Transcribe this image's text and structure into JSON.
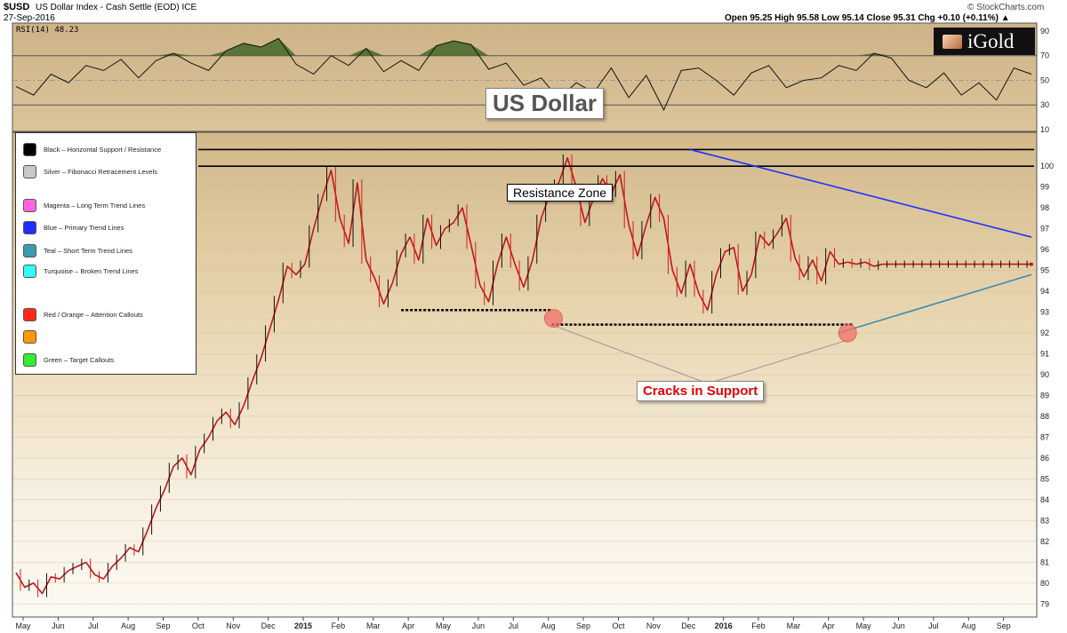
{
  "header": {
    "symbol": "$USD",
    "description": "US Dollar Index - Cash Settle (EOD) ICE",
    "date": "27-Sep-2016",
    "source": "© StockCharts.com",
    "ohlc": "Open 95.25  High 95.58  Low 95.14  Close 95.31  Chg +0.10 (+0.11%) ▲"
  },
  "logo": {
    "text": "iGold"
  },
  "annotations": {
    "title": "US Dollar",
    "resistance": "Resistance Zone",
    "cracks": "Cracks in Support"
  },
  "legend": [
    {
      "label": "Black – Horizontal Support / Resistance",
      "color": "#000000"
    },
    {
      "label": "Silver – Fibonacci Retracement Levels",
      "color": "#c8c8c8"
    },
    {
      "label": "Magenta – Long Term Trend Lines",
      "color": "#ff66dd"
    },
    {
      "label": "Blue – Primary Trend Lines",
      "color": "#1f2fff"
    },
    {
      "label": "Teal – Short Term Trend Lines",
      "color": "#3a9ab0"
    },
    {
      "label": "Turquoise – Broken Trend Lines",
      "color": "#33ffff"
    },
    {
      "label": "Red / Orange – Attention Callouts",
      "color": "#ff2b1a"
    },
    {
      "label": "",
      "color": "#ff9a00"
    },
    {
      "label": "Green – Target Callouts",
      "color": "#33ee33"
    }
  ],
  "chart_data": [
    {
      "type": "line",
      "name": "RSI(14) 48.23",
      "y_ticks": [
        90,
        70,
        50,
        30,
        10
      ],
      "ylim": [
        10,
        95
      ],
      "reference_lines": [
        70,
        50,
        30
      ],
      "x_months": [
        "May",
        "Jun",
        "Jul",
        "Aug",
        "Sep",
        "Oct",
        "Nov",
        "Dec",
        "2015",
        "Feb",
        "Mar",
        "Apr",
        "May",
        "Jun",
        "Jul",
        "Aug",
        "Sep",
        "Oct",
        "Nov",
        "Dec",
        "2016",
        "Feb",
        "Mar",
        "Apr",
        "May",
        "Jun",
        "Jul",
        "Aug",
        "Sep"
      ],
      "x": [
        0,
        10,
        20,
        30,
        40,
        50,
        60,
        70,
        80,
        90,
        100,
        110,
        120,
        130,
        140,
        150,
        160,
        170,
        180,
        190,
        200,
        210,
        220,
        230,
        240,
        250,
        260,
        270,
        280,
        290,
        300,
        310,
        320,
        330,
        340,
        350,
        360,
        370,
        380,
        390,
        400,
        410,
        420,
        430,
        440,
        450,
        460,
        470,
        480,
        490,
        500,
        510,
        520,
        530,
        540,
        550,
        560,
        570,
        580
      ],
      "values": [
        45,
        38,
        55,
        48,
        62,
        58,
        67,
        52,
        66,
        72,
        64,
        58,
        74,
        80,
        77,
        84,
        63,
        55,
        70,
        62,
        76,
        57,
        66,
        58,
        78,
        82,
        79,
        59,
        64,
        46,
        52,
        35,
        48,
        40,
        60,
        36,
        54,
        26,
        58,
        60,
        50,
        38,
        56,
        62,
        44,
        50,
        52,
        62,
        58,
        72,
        68,
        50,
        44,
        56,
        38,
        48,
        34,
        60,
        55
      ],
      "last": 48.23
    },
    {
      "type": "line",
      "name": "$USD",
      "y_ticks": [
        79,
        80,
        81,
        82,
        83,
        84,
        85,
        86,
        87,
        88,
        89,
        90,
        91,
        92,
        93,
        94,
        95,
        96,
        97,
        98,
        99,
        100
      ],
      "ylim": [
        78.5,
        101.5
      ],
      "x_months": [
        "May",
        "Jun",
        "Jul",
        "Aug",
        "Sep",
        "Oct",
        "Nov",
        "Dec",
        "2015",
        "Feb",
        "Mar",
        "Apr",
        "May",
        "Jun",
        "Jul",
        "Aug",
        "Sep",
        "Oct",
        "Nov",
        "Dec",
        "2016",
        "Feb",
        "Mar",
        "Apr",
        "May",
        "Jun",
        "Jul",
        "Aug",
        "Sep"
      ],
      "x": [
        0,
        5,
        10,
        15,
        20,
        25,
        30,
        35,
        40,
        45,
        50,
        55,
        60,
        65,
        70,
        75,
        80,
        85,
        90,
        95,
        100,
        105,
        110,
        115,
        120,
        125,
        130,
        135,
        140,
        145,
        150,
        155,
        160,
        165,
        170,
        175,
        180,
        185,
        190,
        195,
        200,
        205,
        210,
        215,
        220,
        225,
        230,
        235,
        240,
        245,
        250,
        255,
        260,
        265,
        270,
        275,
        280,
        285,
        290,
        295,
        300,
        305,
        310,
        315,
        320,
        325,
        330,
        335,
        340,
        345,
        350,
        355,
        360,
        365,
        370,
        375,
        380,
        385,
        390,
        395,
        400,
        405,
        410,
        415,
        420,
        425,
        430,
        435,
        440,
        445,
        450,
        455,
        460,
        465,
        470,
        475,
        480,
        485,
        490,
        495,
        500,
        505,
        510,
        515,
        520,
        525,
        530,
        535,
        540,
        545,
        550,
        555,
        560,
        565,
        570,
        575,
        580
      ],
      "values": [
        80.5,
        79.8,
        80.0,
        79.5,
        80.3,
        80.2,
        80.6,
        80.8,
        81.0,
        80.4,
        80.2,
        80.8,
        81.2,
        81.7,
        81.5,
        82.5,
        83.6,
        84.5,
        85.6,
        86.0,
        85.2,
        86.4,
        87.0,
        87.8,
        88.2,
        87.6,
        88.5,
        89.7,
        90.8,
        92.2,
        93.6,
        95.2,
        94.8,
        95.3,
        97.0,
        98.5,
        99.8,
        97.5,
        96.3,
        99.2,
        95.5,
        94.6,
        93.4,
        94.4,
        95.8,
        96.6,
        95.5,
        97.5,
        96.2,
        97.0,
        97.3,
        98.0,
        96.2,
        94.3,
        93.5,
        95.3,
        96.6,
        95.3,
        94.2,
        95.5,
        97.5,
        98.7,
        99.2,
        100.4,
        99.0,
        97.3,
        98.5,
        99.4,
        98.7,
        99.6,
        97.2,
        95.7,
        97.2,
        98.5,
        97.5,
        95.0,
        93.9,
        95.3,
        93.9,
        93.1,
        94.8,
        95.9,
        96.1,
        94.0,
        94.8,
        96.7,
        96.2,
        96.8,
        97.5,
        95.6,
        94.7,
        95.5,
        94.5,
        95.9,
        95.3,
        95.4,
        95.3,
        95.4,
        95.2,
        95.3,
        95.3,
        95.3,
        95.3,
        95.3,
        95.3,
        95.3,
        95.3,
        95.3,
        95.3,
        95.3,
        95.3,
        95.3,
        95.3,
        95.3,
        95.3,
        95.3,
        95.3
      ],
      "last_close": 95.31,
      "resistance_zone": [
        100.0,
        100.8
      ],
      "support_lines": [
        {
          "from_x": 220,
          "to_x": 306,
          "y": 93.1,
          "style": "dotted"
        },
        {
          "from_x": 306,
          "to_x": 478,
          "y": 92.4,
          "style": "dotted"
        }
      ],
      "trend_lines": [
        {
          "color": "blue",
          "from": [
            385,
            100.8
          ],
          "to": [
            580,
            96.6
          ]
        },
        {
          "color": "teal",
          "from": [
            470,
            92.0
          ],
          "to": [
            580,
            94.8
          ]
        }
      ],
      "callout_points": [
        [
          307,
          92.7
        ],
        [
          475,
          92.0
        ]
      ]
    }
  ]
}
